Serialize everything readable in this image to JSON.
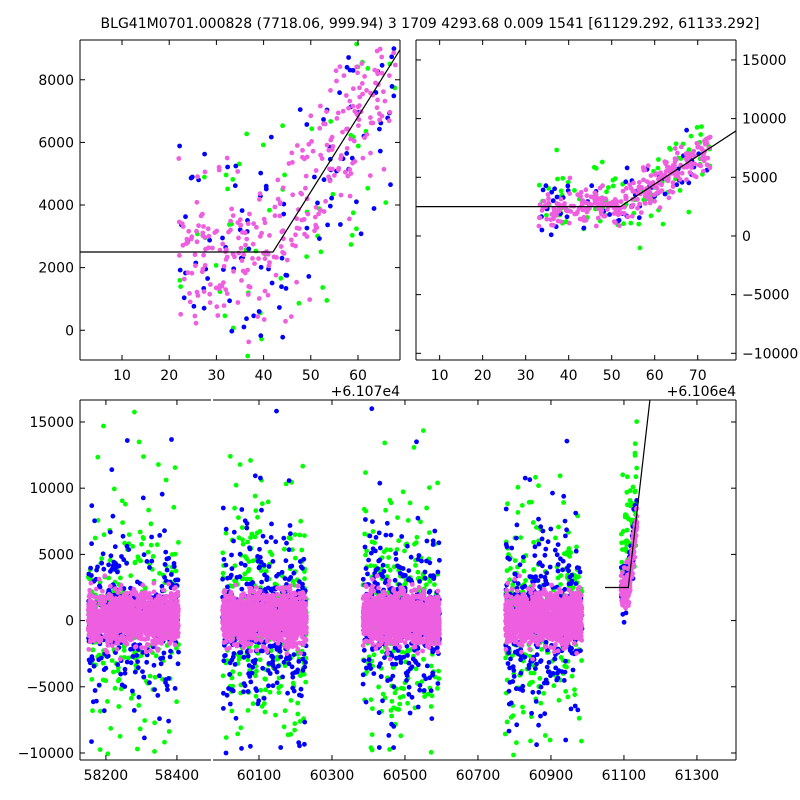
{
  "chart_data": {
    "type": "scatter",
    "title": "BLG41M0701.000828 (7718.06, 999.94)   3 1709 4293.68 0.009 1541 [61129.292, 61133.292]",
    "colors": {
      "blue": "#0000ff",
      "green": "#00ff00",
      "magenta": "#ee5fe0",
      "model": "#000000"
    },
    "model": {
      "baseline": 2500,
      "t_break": 61112,
      "slope_per_day": 240
    },
    "panels": [
      {
        "name": "top-left",
        "xlim": [
          1.1,
          68.9
        ],
        "x_offset_label": "+6.107e4",
        "x_offset": 61070,
        "ylim": [
          -950,
          9270
        ],
        "xticks": [
          10,
          20,
          30,
          40,
          50,
          60
        ],
        "yticks": [
          0,
          2000,
          4000,
          6000,
          8000
        ],
        "yaxis_side": "left",
        "points": {
          "x_range": [
            22,
            68
          ],
          "n": {
            "magenta": 300,
            "blue": 110,
            "green": 60
          },
          "scatter_sd": 1300
        }
      },
      {
        "name": "top-right",
        "xlim": [
          4.5,
          78.9
        ],
        "x_offset_label": "+6.106e4",
        "x_offset": 61060,
        "ylim": [
          -10570,
          16700
        ],
        "xticks": [
          10,
          20,
          30,
          40,
          50,
          60,
          70
        ],
        "yticks": [
          -10000,
          -5000,
          0,
          5000,
          10000,
          15000
        ],
        "yaxis_side": "right",
        "points": {
          "x_range": [
            33,
            73
          ],
          "n": {
            "magenta": 300,
            "blue": 70,
            "green": 110
          },
          "scatter_sd": 900
        }
      },
      {
        "name": "bottom",
        "segments": [
          {
            "xlim": [
              58127,
              58496
            ],
            "xticks": [
              58200,
              58400
            ]
          },
          {
            "xlim": [
              59974,
              61407
            ],
            "xticks": [
              60100,
              60300,
              60500,
              60700,
              60900,
              61100,
              61300
            ]
          }
        ],
        "ylim": [
          -10530,
          16660
        ],
        "yticks": [
          -10000,
          -5000,
          0,
          5000,
          10000,
          15000
        ],
        "model_line_xrange": [
          61048,
          61250
        ],
        "seasons": [
          {
            "start": 58150,
            "end": 58405,
            "n_magenta": 1400,
            "n_blue": 320,
            "n_green": 260
          },
          {
            "start": 60000,
            "end": 60230,
            "n_magenta": 1400,
            "n_blue": 420,
            "n_green": 320
          },
          {
            "start": 60385,
            "end": 60595,
            "n_magenta": 1400,
            "n_blue": 380,
            "n_green": 280
          },
          {
            "start": 60775,
            "end": 60985,
            "n_magenta": 1400,
            "n_blue": 380,
            "n_green": 300
          }
        ],
        "rise": {
          "x_range": [
            61092,
            61136
          ],
          "n_magenta": 200,
          "n_blue": 40,
          "n_green": 60
        }
      }
    ]
  }
}
